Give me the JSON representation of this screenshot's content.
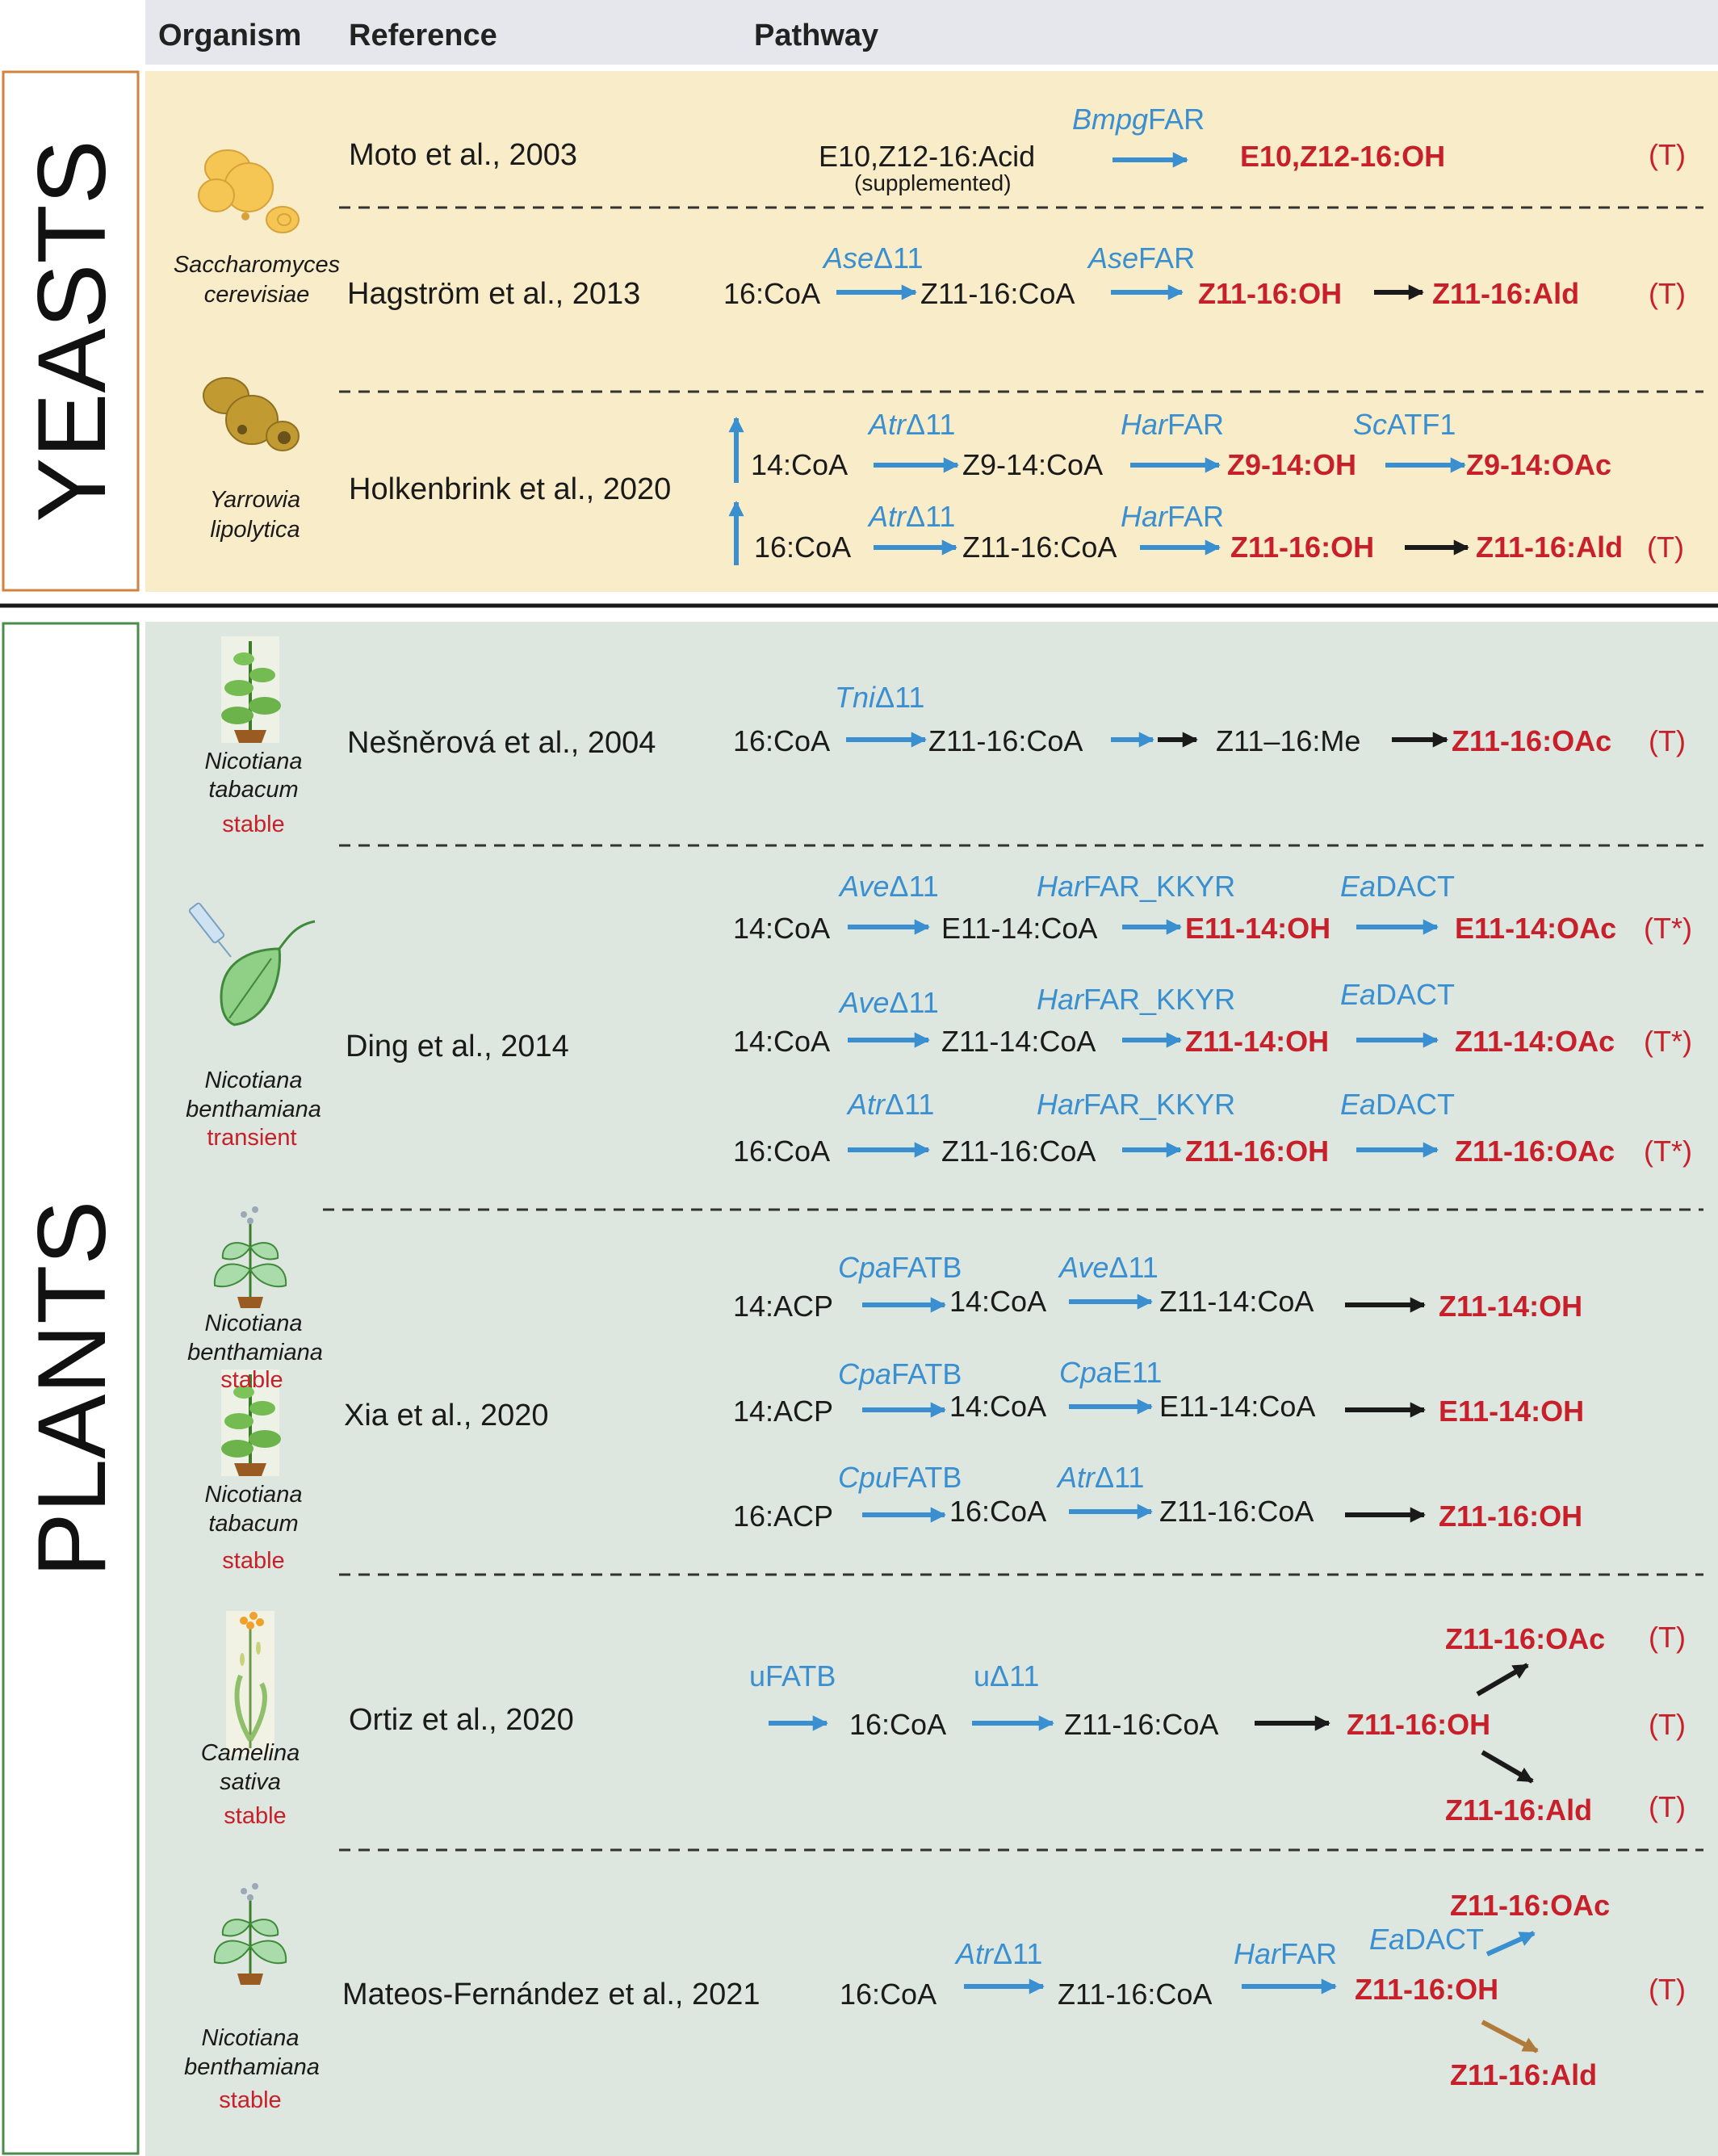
{
  "header": {
    "organism": "Organism",
    "reference": "Reference",
    "pathway": "Pathway"
  },
  "groups": {
    "yeasts": "YEASTS",
    "plants": "PLANTS"
  },
  "colors": {
    "enzyme": "#3a8fd0",
    "product": "#c8202a",
    "note": "#c8202a",
    "yeast_bg": "#f9ecc8",
    "plant_bg": "#dde6df",
    "header_bg": "#e6e7ec",
    "yeast_border": "#d2823c",
    "plant_border": "#4a8c4a",
    "arrow_blue": "#3a8fd0",
    "arrow_black": "#1a1a1a",
    "arrow_brown": "#b07a3a"
  },
  "organisms": {
    "sc_1": "Saccharomyces",
    "sc_2": "cerevisiae",
    "yl_1": "Yarrowia",
    "yl_2": "lipolytica",
    "nt1_1": "Nicotiana",
    "nt1_2": "tabacum",
    "nt1_3": "stable",
    "nb1_1": "Nicotiana",
    "nb1_2": "benthamiana",
    "nb1_3": "transient",
    "nb2_1": "Nicotiana",
    "nb2_2": "benthamiana",
    "nb2_3": "stable",
    "nt2_1": "Nicotiana",
    "nt2_2": "tabacum",
    "nt2_3": "stable",
    "cs_1": "Camelina",
    "cs_2": "sativa",
    "cs_3": "stable",
    "nb3_1": "Nicotiana",
    "nb3_2": "benthamiana",
    "nb3_3": "stable"
  },
  "references": {
    "moto": "Moto et al., 2003",
    "hagstrom": "Hagström et al., 2013",
    "holkenbrink": "Holkenbrink et al., 2020",
    "nesnerova": "Nešněrová et al., 2004",
    "ding": "Ding et al., 2014",
    "xia": "Xia et al., 2020",
    "ortiz": "Ortiz et al., 2020",
    "mateos": "Mateos-Fernández et al., 2021"
  },
  "pathways": {
    "moto": {
      "s1": "E10,Z12-16:Acid",
      "s1_note": "(supplemented)",
      "e1a": "Bmpg",
      "e1b": "FAR",
      "p1": "E10,Z12-16:OH",
      "tag": "(T)"
    },
    "hag": {
      "s1": "16:CoA",
      "e1a": "Ase",
      "e1b": "Δ11",
      "s2": "Z11-16:CoA",
      "e2a": "Ase",
      "e2b": "FAR",
      "p1": "Z11-16:OH",
      "p2": "Z11-16:Ald",
      "tag": "(T)"
    },
    "hol1": {
      "s1": "14:CoA",
      "e1a": "Atr",
      "e1b": "Δ11",
      "s2": "Z9-14:CoA",
      "e2a": "Har",
      "e2b": "FAR",
      "p1": "Z9-14:OH",
      "e3a": "Sc",
      "e3b": "ATF1",
      "p2": "Z9-14:OAc"
    },
    "hol2": {
      "s1": "16:CoA",
      "e1a": "Atr",
      "e1b": "Δ11",
      "s2": "Z11-16:CoA",
      "e2a": "Har",
      "e2b": "FAR",
      "p1": "Z11-16:OH",
      "p2": "Z11-16:Ald",
      "tag": "(T)"
    },
    "nes": {
      "s1": "16:CoA",
      "e1a": "Tni",
      "e1b": "Δ11",
      "s2": "Z11-16:CoA",
      "s3": "Z11–16:Me",
      "p1": "Z11-16:OAc",
      "tag": "(T)"
    },
    "ding1": {
      "s1": "14:CoA",
      "e1a": "Ave",
      "e1b": "Δ11",
      "s2": "E11-14:CoA",
      "e2a": "Har",
      "e2b": "FAR_KKYR",
      "p1": "E11-14:OH",
      "e3a": "Ea",
      "e3b": "DACT",
      "p2": "E11-14:OAc",
      "tag": "(T*)"
    },
    "ding2": {
      "s1": "14:CoA",
      "e1a": "Ave",
      "e1b": "Δ11",
      "s2": "Z11-14:CoA",
      "e2a": "Har",
      "e2b": "FAR_KKYR",
      "p1": "Z11-14:OH",
      "e3a": "Ea",
      "e3b": "DACT",
      "p2": "Z11-14:OAc",
      "tag": "(T*)"
    },
    "ding3": {
      "s1": "16:CoA",
      "e1a": "Atr",
      "e1b": "Δ11",
      "s2": "Z11-16:CoA",
      "e2a": "Har",
      "e2b": "FAR_KKYR",
      "p1": "Z11-16:OH",
      "e3a": "Ea",
      "e3b": "DACT",
      "p2": "Z11-16:OAc",
      "tag": "(T*)"
    },
    "xia1": {
      "s1": "14:ACP",
      "e1a": "Cpa",
      "e1b": "FATB",
      "s2": "14:CoA",
      "e2a": "Ave",
      "e2b": "Δ11",
      "s3": "Z11-14:CoA",
      "p1": "Z11-14:OH"
    },
    "xia2": {
      "s1": "14:ACP",
      "e1a": "Cpa",
      "e1b": "FATB",
      "s2": "14:CoA",
      "e2a": "Cpa",
      "e2b": "E11",
      "s3": "E11-14:CoA",
      "p1": "E11-14:OH"
    },
    "xia3": {
      "s1": "16:ACP",
      "e1a": "Cpu",
      "e1b": "FATB",
      "s2": "16:CoA",
      "e2a": "Atr",
      "e2b": "Δ11",
      "s3": "Z11-16:CoA",
      "p1": "Z11-16:OH"
    },
    "ortiz": {
      "e1": "uFATB",
      "s1": "16:CoA",
      "e2": "uΔ11",
      "s2": "Z11-16:CoA",
      "p1": "Z11-16:OH",
      "p2": "Z11-16:OAc",
      "p3": "Z11-16:Ald",
      "t1": "(T)",
      "t2": "(T)",
      "t3": "(T)"
    },
    "mateos": {
      "s1": "16:CoA",
      "e1a": "Atr",
      "e1b": "Δ11",
      "s2": "Z11-16:CoA",
      "e2a": "Har",
      "e2b": "FAR",
      "p1": "Z11-16:OH",
      "e3a": "Ea",
      "e3b": "DACT",
      "p2": "Z11-16:OAc",
      "p3": "Z11-16:Ald",
      "tag": "(T)"
    }
  }
}
